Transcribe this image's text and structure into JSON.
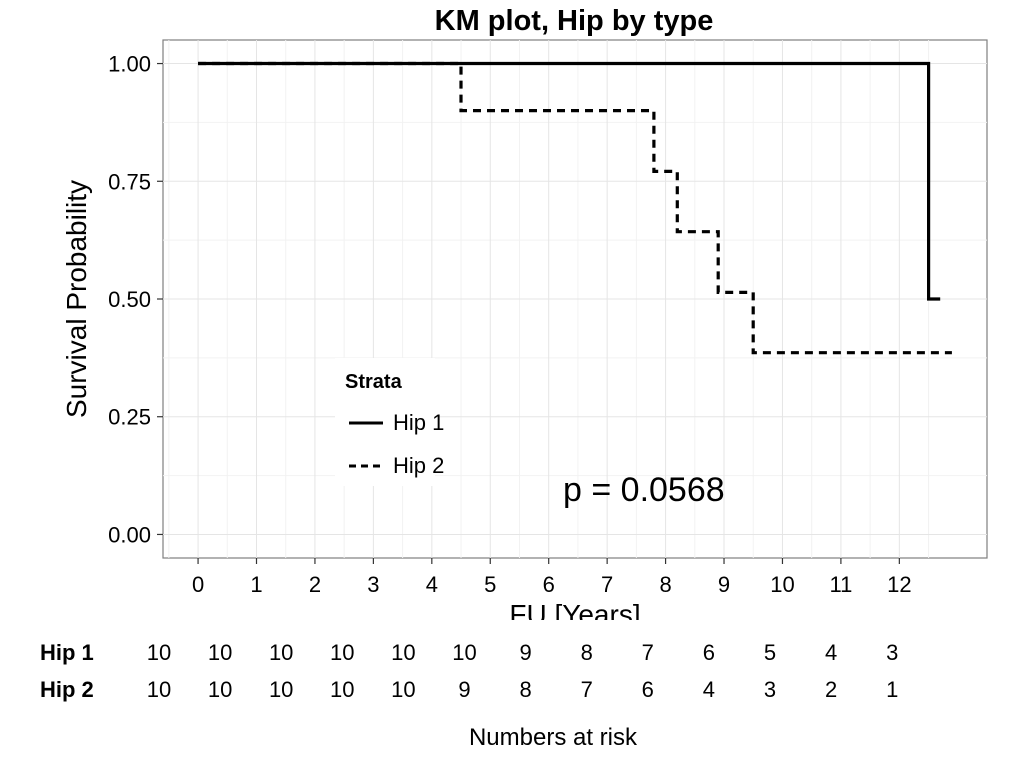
{
  "chart_data": {
    "type": "line",
    "title": "KM plot, Hip by type",
    "xlabel": "FU [Years]",
    "ylabel": "Survival Probability",
    "xlim": [
      -0.6,
      13.5
    ],
    "ylim": [
      -0.05,
      1.05
    ],
    "x_ticks": [
      "0",
      "1",
      "2",
      "3",
      "4",
      "5",
      "6",
      "7",
      "8",
      "9",
      "10",
      "11",
      "12"
    ],
    "y_ticks": [
      "0.00",
      "0.25",
      "0.50",
      "0.75",
      "1.00"
    ],
    "grid": true,
    "legend": {
      "title": "Strata",
      "position": "lower-left inside"
    },
    "annotation": "p = 0.0568",
    "series": [
      {
        "name": "Hip 1",
        "style": "solid",
        "color": "#000000",
        "steps": [
          [
            0,
            1.0
          ],
          [
            12.5,
            1.0
          ],
          [
            12.5,
            0.5
          ],
          [
            12.7,
            0.5
          ]
        ]
      },
      {
        "name": "Hip 2",
        "style": "dashed",
        "color": "#000000",
        "steps": [
          [
            0,
            1.0
          ],
          [
            4.5,
            1.0
          ],
          [
            4.5,
            0.9
          ],
          [
            7.8,
            0.9
          ],
          [
            7.8,
            0.771
          ],
          [
            8.2,
            0.771
          ],
          [
            8.2,
            0.643
          ],
          [
            8.9,
            0.643
          ],
          [
            8.9,
            0.514
          ],
          [
            9.5,
            0.514
          ],
          [
            9.5,
            0.386
          ],
          [
            12.9,
            0.386
          ]
        ]
      }
    ]
  },
  "risk_table": {
    "caption": "Numbers at risk",
    "rows": [
      {
        "label": "Hip 1",
        "values": [
          "10",
          "10",
          "10",
          "10",
          "10",
          "10",
          "9",
          "8",
          "7",
          "6",
          "5",
          "4",
          "3"
        ]
      },
      {
        "label": "Hip 2",
        "values": [
          "10",
          "10",
          "10",
          "10",
          "10",
          "9",
          "8",
          "7",
          "6",
          "4",
          "3",
          "2",
          "1"
        ]
      }
    ]
  }
}
